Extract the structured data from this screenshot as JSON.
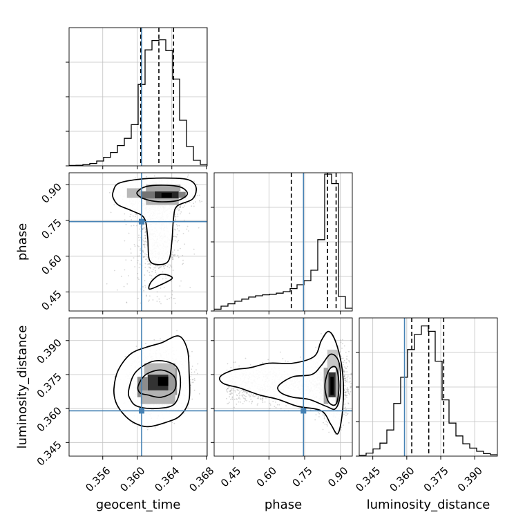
{
  "chart_data": {
    "type": "corner",
    "parameters": [
      "geocent_time",
      "phase",
      "luminosity_distance"
    ],
    "injection": {
      "geocent_time": 0.3605,
      "phase": 0.745,
      "luminosity_distance": 0.359
    },
    "colors": {
      "injection": "#4682b4",
      "contour": "#000000",
      "grid": "#c0c0c0",
      "scatter": "#808080"
    },
    "grid": true,
    "axes": {
      "geocent_time": {
        "range": [
          0.3521,
          0.3681
        ],
        "ticks": [
          0.356,
          0.36,
          0.364,
          0.368
        ],
        "tick_labels": [
          "0.356",
          "0.360",
          "0.364",
          "0.368"
        ],
        "xlabel": "geocent_time"
      },
      "phase": {
        "range": [
          0.37,
          0.95
        ],
        "ticks": [
          0.45,
          0.6,
          0.75,
          0.9
        ],
        "tick_labels": [
          "0.45",
          "0.60",
          "0.75",
          "0.90"
        ],
        "xlabel": "phase",
        "ylabel": "phase"
      },
      "luminosity_distance": {
        "range": [
          0.339,
          0.4
        ],
        "ticks": [
          0.345,
          0.36,
          0.375,
          0.39
        ],
        "tick_labels": [
          "0.345",
          "0.360",
          "0.375",
          "0.390"
        ],
        "xlabel": "luminosity_distance",
        "ylabel": "luminosity_distance"
      }
    },
    "histograms": [
      {
        "parameter": "geocent_time",
        "bin_edges": [
          0.3521,
          0.3529,
          0.3537,
          0.3545,
          0.3553,
          0.3561,
          0.3569,
          0.3577,
          0.3585,
          0.3593,
          0.3601,
          0.3609,
          0.3617,
          0.3625,
          0.3633,
          0.3641,
          0.3649,
          0.3657,
          0.3665,
          0.3673,
          0.3681
        ],
        "counts": [
          0.003,
          0.004,
          0.009,
          0.017,
          0.035,
          0.062,
          0.097,
          0.147,
          0.199,
          0.298,
          0.589,
          0.839,
          0.907,
          0.912,
          0.834,
          0.628,
          0.33,
          0.14,
          0.04,
          0.01
        ],
        "quantiles": [
          0.3604,
          0.3625,
          0.3642
        ]
      },
      {
        "parameter": "phase",
        "bin_edges": [
          0.37,
          0.399,
          0.428,
          0.457,
          0.486,
          0.515,
          0.544,
          0.573,
          0.602,
          0.631,
          0.66,
          0.689,
          0.718,
          0.747,
          0.776,
          0.805,
          0.834,
          0.863,
          0.892,
          0.921,
          0.95
        ],
        "counts": [
          0.013,
          0.035,
          0.052,
          0.071,
          0.086,
          0.101,
          0.11,
          0.117,
          0.121,
          0.129,
          0.14,
          0.162,
          0.19,
          0.219,
          0.295,
          0.516,
          0.99,
          0.922,
          0.105,
          0.02
        ],
        "quantiles": [
          0.694,
          0.846,
          0.882
        ]
      },
      {
        "parameter": "luminosity_distance",
        "bin_edges": [
          0.339,
          0.34205,
          0.3451,
          0.34815,
          0.3512,
          0.35425,
          0.3573,
          0.36035,
          0.3634,
          0.36645,
          0.3695,
          0.37255,
          0.3756,
          0.37865,
          0.3817,
          0.38475,
          0.3878,
          0.39085,
          0.3939,
          0.39695,
          0.4
        ],
        "counts": [
          0.007,
          0.022,
          0.052,
          0.094,
          0.189,
          0.381,
          0.571,
          0.771,
          0.88,
          0.942,
          0.903,
          0.687,
          0.407,
          0.239,
          0.146,
          0.089,
          0.058,
          0.035,
          0.018,
          0.01
        ],
        "quantiles": [
          0.3622,
          0.3697,
          0.3763
        ]
      }
    ],
    "joint_panels": [
      {
        "x": "geocent_time",
        "y": "phase"
      },
      {
        "x": "geocent_time",
        "y": "luminosity_distance"
      },
      {
        "x": "phase",
        "y": "luminosity_distance"
      }
    ]
  }
}
